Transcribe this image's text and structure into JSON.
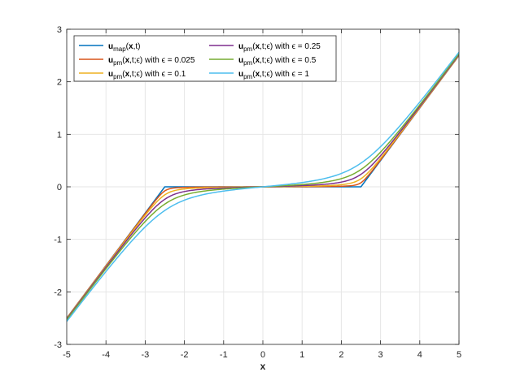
{
  "chart_data": {
    "type": "line",
    "xlabel": "x",
    "ylabel": "",
    "xlim": [
      -5,
      5
    ],
    "ylim": [
      -3,
      3
    ],
    "xticks": [
      "-5",
      "-4",
      "-3",
      "-2",
      "-1",
      "0",
      "1",
      "2",
      "3",
      "4",
      "5"
    ],
    "yticks": [
      "-3",
      "-2",
      "-1",
      "0",
      "1",
      "2",
      "3"
    ],
    "grid": true,
    "legend_position": "top-left",
    "legend_columns": 2,
    "series": [
      {
        "name": "u_map(x,t)",
        "legend": {
          "main": "u",
          "sub": "map",
          "args": [
            [
              "x",
              true
            ],
            [
              ",t)",
              false
            ]
          ]
        },
        "color": "#0072bd",
        "epsilon": 0,
        "x": [
          -5,
          -2.5,
          2.5,
          5
        ],
        "y": [
          -2.5,
          0,
          0,
          2.5
        ]
      },
      {
        "name": "u_pm(x,t;ε) with ε = 0.025",
        "legend": {
          "main": "u",
          "sub": "pm",
          "args": [
            [
              "x",
              true
            ],
            [
              ",t;ϵ) with ϵ = 0.025",
              false
            ]
          ]
        },
        "color": "#d95319",
        "epsilon": 0.025,
        "x": [
          -5,
          -4,
          -3,
          -2.5,
          -2,
          -1,
          0,
          1,
          2,
          2.5,
          3,
          4,
          5
        ],
        "y": [
          -2.5,
          -1.5,
          -0.52,
          -0.1,
          -0.04,
          -0.015,
          0,
          0.015,
          0.04,
          0.1,
          0.52,
          1.5,
          2.5
        ]
      },
      {
        "name": "u_pm(x,t;ε) with ε = 0.1",
        "legend": {
          "main": "u",
          "sub": "pm",
          "args": [
            [
              "x",
              true
            ],
            [
              ",t;ϵ) with ϵ = 0.1",
              false
            ]
          ]
        },
        "color": "#edb120",
        "epsilon": 0.1,
        "x": [
          -5,
          -4,
          -3,
          -2.5,
          -2,
          -1,
          0,
          1,
          2,
          2.5,
          3,
          4,
          5
        ],
        "y": [
          -2.5,
          -1.5,
          -0.56,
          -0.19,
          -0.09,
          -0.035,
          0,
          0.035,
          0.09,
          0.19,
          0.56,
          1.5,
          2.5
        ]
      },
      {
        "name": "u_pm(x,t;ε) with ε = 0.25",
        "legend": {
          "main": "u",
          "sub": "pm",
          "args": [
            [
              "x",
              true
            ],
            [
              ",t;ϵ) with ϵ = 0.25",
              false
            ]
          ]
        },
        "color": "#7e2f8e",
        "epsilon": 0.25,
        "x": [
          -5,
          -4,
          -3,
          -2.5,
          -2,
          -1,
          0,
          1,
          2,
          2.5,
          3,
          4,
          5
        ],
        "y": [
          -2.5,
          -1.51,
          -0.64,
          -0.3,
          -0.16,
          -0.06,
          0,
          0.06,
          0.16,
          0.3,
          0.64,
          1.51,
          2.5
        ]
      },
      {
        "name": "u_pm(x,t;ε) with ε = 0.5",
        "legend": {
          "main": "u",
          "sub": "pm",
          "args": [
            [
              "x",
              true
            ],
            [
              ",t;ϵ) with ϵ = 0.5",
              false
            ]
          ]
        },
        "color": "#77ac30",
        "epsilon": 0.5,
        "x": [
          -5,
          -4,
          -3,
          -2.5,
          -2,
          -1,
          0,
          1,
          2,
          2.5,
          3,
          4,
          5
        ],
        "y": [
          -2.5,
          -1.53,
          -0.74,
          -0.43,
          -0.25,
          -0.1,
          0,
          0.1,
          0.25,
          0.43,
          0.74,
          1.53,
          2.5
        ]
      },
      {
        "name": "u_pm(x,t;ε) with ε = 1",
        "legend": {
          "main": "u",
          "sub": "pm",
          "args": [
            [
              "x",
              true
            ],
            [
              ",t;ϵ) with ϵ = 1",
              false
            ]
          ]
        },
        "color": "#4dbeee",
        "epsilon": 1,
        "x": [
          -5,
          -4,
          -3,
          -2.5,
          -2,
          -1,
          0,
          1,
          2,
          2.5,
          3,
          4,
          5
        ],
        "y": [
          -2.5,
          -1.62,
          -0.9,
          -0.6,
          -0.38,
          -0.16,
          0,
          0.16,
          0.38,
          0.6,
          0.9,
          1.62,
          2.5
        ]
      }
    ]
  }
}
